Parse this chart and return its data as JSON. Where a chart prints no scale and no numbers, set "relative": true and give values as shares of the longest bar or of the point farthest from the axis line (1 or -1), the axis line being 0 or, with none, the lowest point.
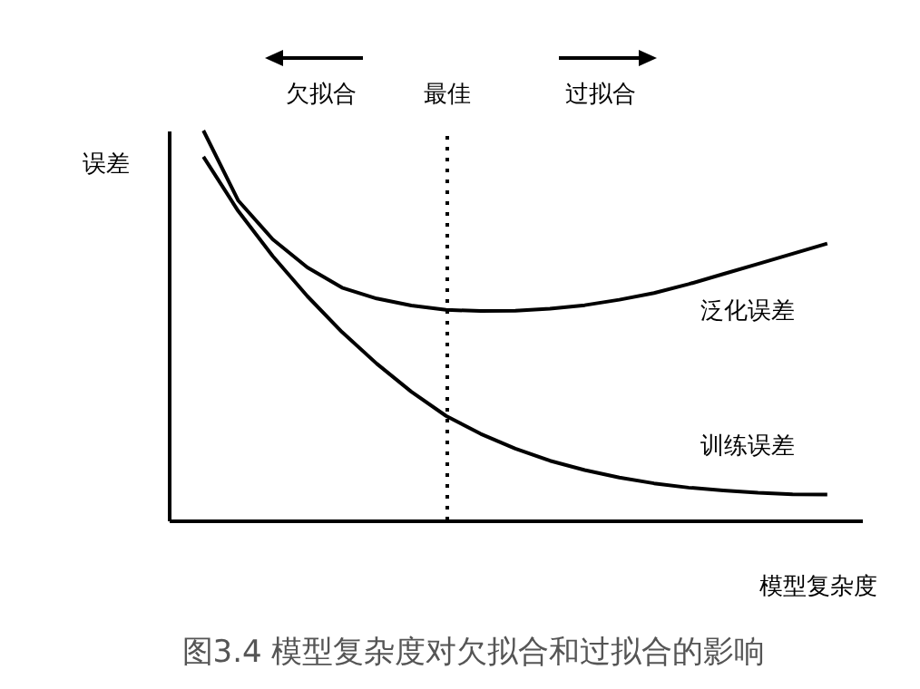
{
  "chart_data": {
    "type": "line",
    "title": "图3.4 模型复杂度对欠拟合和过拟合的影响",
    "xlabel": "模型复杂度",
    "ylabel": "误差",
    "relative": true,
    "tick_labels": false,
    "legend": false,
    "marker": "none",
    "line_style": "solid",
    "categories": [
      null,
      null,
      null,
      null,
      null,
      null,
      null,
      null,
      null,
      null,
      null,
      null,
      null,
      null,
      null,
      null,
      null,
      null,
      null
    ],
    "series": [
      {
        "name": "泛化误差",
        "color": "#000000",
        "values": [
          1.0,
          0.821,
          0.721,
          0.649,
          0.597,
          0.569,
          0.551,
          0.54,
          0.537,
          0.538,
          0.543,
          0.552,
          0.566,
          0.583,
          0.606,
          0.632,
          0.658,
          0.684,
          0.71
        ]
      },
      {
        "name": "训练误差",
        "color": "#000000",
        "values": [
          0.933,
          0.794,
          0.678,
          0.575,
          0.483,
          0.402,
          0.33,
          0.268,
          0.222,
          0.184,
          0.153,
          0.129,
          0.11,
          0.095,
          0.084,
          0.077,
          0.071,
          0.067,
          0.066
        ]
      }
    ],
    "annotations": [
      "欠拟合",
      "最佳",
      "过拟合"
    ]
  }
}
